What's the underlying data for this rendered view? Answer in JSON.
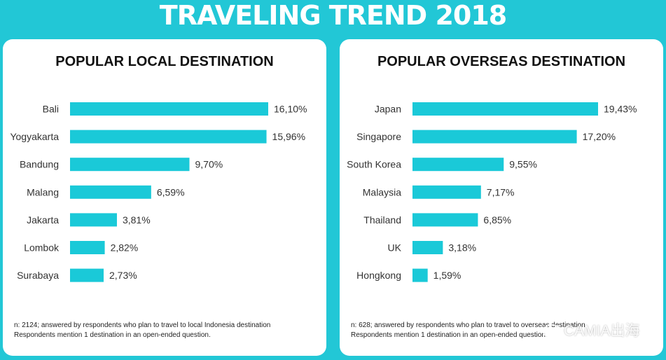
{
  "title": "TRAVELING TREND 2018",
  "colors": {
    "background": "#22c7d6",
    "bar": "#1ac9d8",
    "panel": "#ffffff"
  },
  "chart_data": [
    {
      "type": "bar",
      "orientation": "horizontal",
      "title": "POPULAR LOCAL DESTINATION",
      "categories": [
        "Bali",
        "Yogyakarta",
        "Bandung",
        "Malang",
        "Jakarta",
        "Lombok",
        "Surabaya"
      ],
      "values": [
        16.1,
        15.96,
        9.7,
        6.59,
        3.81,
        2.82,
        2.73
      ],
      "labels": [
        "16,10%",
        "15,96%",
        "9,70%",
        "6,59%",
        "3,81%",
        "2,82%",
        "2,73%"
      ],
      "xlim": [
        0,
        16.1
      ],
      "unit": "%"
    },
    {
      "type": "bar",
      "orientation": "horizontal",
      "title": "POPULAR OVERSEAS DESTINATION",
      "categories": [
        "Japan",
        "Singapore",
        "South Korea",
        "Malaysia",
        "Thailand",
        "UK",
        "Hongkong"
      ],
      "values": [
        19.43,
        17.2,
        9.55,
        7.17,
        6.85,
        3.18,
        1.59
      ],
      "labels": [
        "19,43%",
        "17,20%",
        "9,55%",
        "7,17%",
        "6,85%",
        "3,18%",
        "1,59%"
      ],
      "xlim": [
        0,
        19.43
      ],
      "unit": "%"
    }
  ],
  "notes": {
    "local": [
      "n: 2124; answered by respondents who plan to travel to local Indonesia destination",
      "Respondents mention 1 destination in an open-ended question."
    ],
    "overseas": [
      "n: 628; answered by respondents who plan to travel to overseas destination",
      "Respondents mention 1 destination in an open-ended question."
    ]
  },
  "watermark": {
    "text": "CAMIA出海",
    "icon": "wechat-icon"
  }
}
